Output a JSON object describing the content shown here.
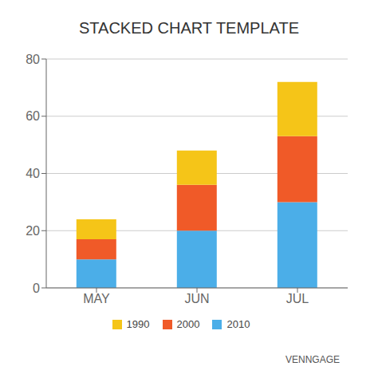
{
  "chart_data": {
    "type": "bar",
    "title": "STACKED CHART TEMPLATE",
    "categories": [
      "MAY",
      "JUN",
      "JUL"
    ],
    "series": [
      {
        "name": "2010",
        "color": "#4BAEE8",
        "values": [
          10,
          20,
          30
        ]
      },
      {
        "name": "2000",
        "color": "#F05A28",
        "values": [
          7,
          16,
          23
        ]
      },
      {
        "name": "1990",
        "color": "#F5C518",
        "values": [
          7,
          12,
          19
        ]
      }
    ],
    "stacked": true,
    "ylim": [
      0,
      80
    ],
    "yticks": [
      0,
      20,
      40,
      60,
      80
    ],
    "grid": true,
    "legend": "bottom",
    "annotations": [
      "VENNGAGE"
    ]
  }
}
